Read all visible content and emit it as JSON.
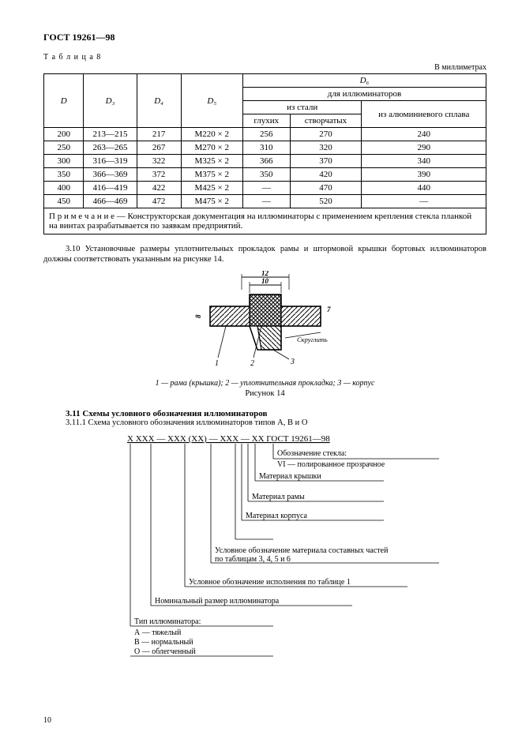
{
  "header": "ГОСТ 19261—98",
  "table_label": "Т а б л и ц а 8",
  "units": "В миллиметрах",
  "table": {
    "headers": {
      "D": "D",
      "D3": "D₃",
      "D4": "D₄",
      "D5": "D₅",
      "D6": "D₆",
      "for_port": "для иллюминаторов",
      "steel": "из стали",
      "alum": "из алюминиевого сплава",
      "blind": "глухих",
      "hinged": "створчатых"
    },
    "rows": [
      [
        "200",
        "213—215",
        "217",
        "М220 × 2",
        "256",
        "270",
        "240"
      ],
      [
        "250",
        "263—265",
        "267",
        "М270 × 2",
        "310",
        "320",
        "290"
      ],
      [
        "300",
        "316—319",
        "322",
        "М325 × 2",
        "366",
        "370",
        "340"
      ],
      [
        "350",
        "366—369",
        "372",
        "М375 × 2",
        "350",
        "420",
        "390"
      ],
      [
        "400",
        "416—419",
        "422",
        "М425 × 2",
        "—",
        "470",
        "440"
      ],
      [
        "450",
        "466—469",
        "472",
        "М475 × 2",
        "—",
        "520",
        "—"
      ]
    ],
    "note": "П р и м е ч а н и е — Конструкторская документация на иллюминаторы с применением крепления стекла планкой на винтах разрабатывается по заявкам предприятий."
  },
  "section_3_10": "3.10 Установочные размеры уплотнительных прокладок рамы и штормовой крышки бортовых иллюминаторов должны соответствовать указанным на рисунке 14.",
  "figure": {
    "dim12": "12",
    "dim10": "10",
    "dim8": "8",
    "dim7": "7",
    "round": "Скруглить",
    "markers": {
      "m1": "1",
      "m2": "2",
      "m3": "3"
    },
    "caption_parts": "1 — рама (крышка); 2 — уплотнительная прокладка; 3 — корпус",
    "label": "Рисунок 14"
  },
  "section_3_11_title": "3.11 Схемы условного обозначения иллюминаторов",
  "section_3_11_1": "3.11.1 Схема условного обозначения иллюминаторов типов А, В и О",
  "scheme": {
    "pattern": "X   XXX — XXX (XX) — XXX — XX ГОСТ 19261—98",
    "leg1": {
      "t1": "Обозначение стекла:",
      "t2": "VI — полированное прозрачное"
    },
    "leg2": "Материал крышки",
    "leg3": "Материал рамы",
    "leg4": "Материал корпуса",
    "leg5": {
      "t1": "Условное обозначение материала составных частей",
      "t2": "по таблицам 3, 4, 5 и 6"
    },
    "leg6": "Условное обозначение исполнения по таблице 1",
    "leg7": "Номинальный размер иллюминатора",
    "leg8": {
      "t1": "Тип иллюминатора:",
      "t2": "А — тяжелый",
      "t3": "В — нормальный",
      "t4": "О — облегченный"
    }
  },
  "page_number": "10"
}
